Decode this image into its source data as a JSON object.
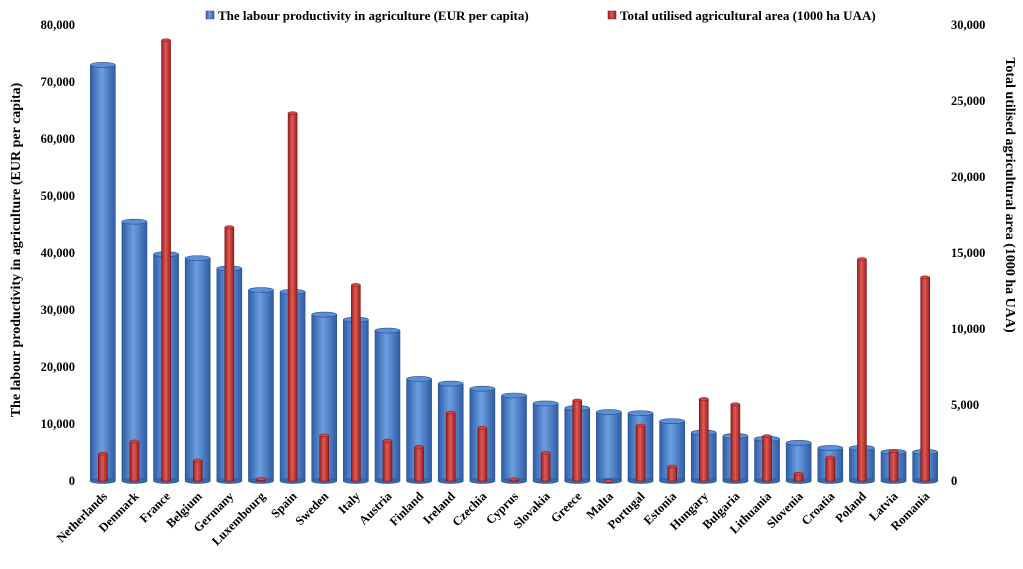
{
  "chart_data": {
    "type": "bar",
    "categories": [
      "Netherlands",
      "Denmark",
      "France",
      "Belgium",
      "Germany",
      "Luxembourg",
      "Spain",
      "Sweden",
      "Italy",
      "Austria",
      "Finland",
      "Ireland",
      "Czechia",
      "Cyprus",
      "Slovakia",
      "Greece",
      "Malta",
      "Portugal",
      "Estonia",
      "Hungary",
      "Bulgaria",
      "Lithuania",
      "Slovenia",
      "Croatia",
      "Poland",
      "Latvia",
      "Romania"
    ],
    "series": [
      {
        "name": "The labour productivity in agriculture (EUR per capita)",
        "axis": "left",
        "color": "#4a7ec9",
        "values": [
          73000,
          45500,
          39800,
          39100,
          37300,
          33500,
          33200,
          29200,
          28300,
          26400,
          17900,
          17100,
          16200,
          15000,
          13600,
          12800,
          12100,
          11900,
          10500,
          8500,
          7900,
          7400,
          6700,
          5800,
          5800,
          5100,
          5100
        ]
      },
      {
        "name": "Total utilised agricultural area (1000 ha UAA)",
        "axis": "right",
        "color": "#c0302d",
        "values": [
          1800,
          2600,
          29000,
          1350,
          16700,
          130,
          24200,
          3000,
          12900,
          2650,
          2250,
          4500,
          3500,
          110,
          1850,
          5300,
          12,
          3650,
          950,
          5400,
          5050,
          2950,
          480,
          1550,
          14600,
          1950,
          13400
        ]
      }
    ],
    "xlabel": "",
    "ylabel": "The labour productivity in agriculture (EUR per capita)",
    "y2label": "Total utilised agricultural area (1000 ha UAA)",
    "ylim": [
      0,
      80000
    ],
    "y2lim": [
      0,
      30000
    ],
    "yticks": [
      "0",
      "10,000",
      "20,000",
      "30,000",
      "40,000",
      "50,000",
      "60,000",
      "70,000",
      "80,000"
    ],
    "y2ticks": [
      "0",
      "5,000",
      "10,000",
      "15,000",
      "20,000",
      "25,000",
      "30,000"
    ],
    "grid": false,
    "legend": "top"
  }
}
